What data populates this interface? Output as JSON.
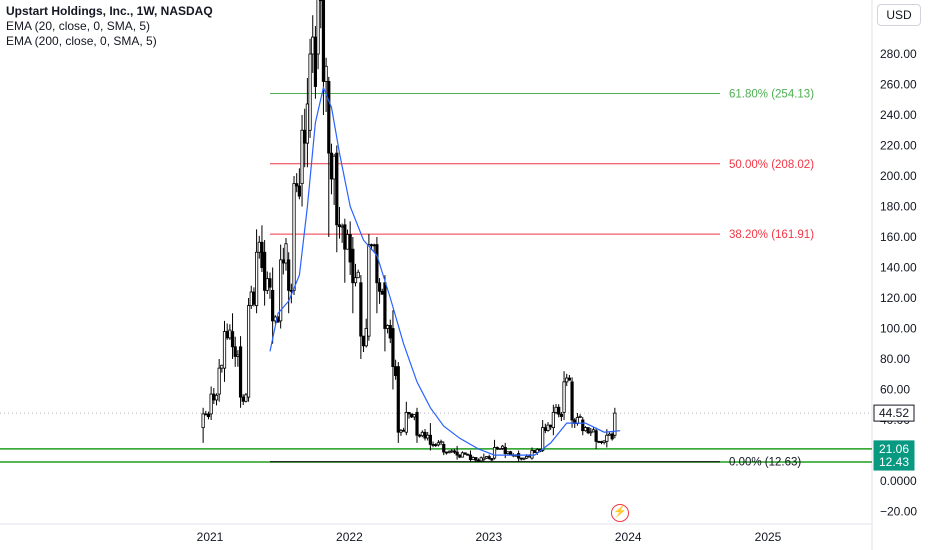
{
  "legend": {
    "title": "Upstart Holdings, Inc., 1W, NASDAQ",
    "ema20": "EMA (20, close, 0, SMA, 5)",
    "ema200": "EMA (200, close, 0, SMA, 5)"
  },
  "currency_button": "USD",
  "colors": {
    "candle": "#000000",
    "ema20": "#2962ff",
    "fib_618": "#4caf50",
    "fib_500": "#f23645",
    "fib_382": "#f23645",
    "fib_0": "#000000",
    "support_line": "#089981",
    "price_badge": "#ffffff",
    "support_badge": "#089981"
  },
  "chart_data": {
    "type": "candlestick",
    "x_tick_labels": [
      "2021",
      "2022",
      "2023",
      "2024",
      "2025"
    ],
    "y_tick_labels": [
      "280.00",
      "260.00",
      "240.00",
      "220.00",
      "200.00",
      "180.00",
      "160.00",
      "140.00",
      "120.00",
      "100.00",
      "80.00",
      "60.00",
      "40.00",
      "20.00",
      "0.0000",
      "−20.00"
    ],
    "y_ticks": [
      280,
      260,
      240,
      220,
      200,
      180,
      160,
      140,
      120,
      100,
      80,
      60,
      40,
      20,
      0,
      -20
    ],
    "ylim": [
      -25,
      300
    ],
    "date_range": [
      "2020-12-14",
      "2023-12-11"
    ],
    "ohlc": [
      [
        "2020-12-14",
        35,
        48,
        25,
        44
      ],
      [
        "2021-01-04",
        44,
        62,
        40,
        57
      ],
      [
        "2021-01-25",
        57,
        80,
        52,
        74
      ],
      [
        "2021-02-08",
        74,
        105,
        65,
        98
      ],
      [
        "2021-03-01",
        98,
        110,
        80,
        88
      ],
      [
        "2021-03-22",
        88,
        95,
        48,
        55
      ],
      [
        "2021-04-12",
        55,
        120,
        52,
        115
      ],
      [
        "2021-05-03",
        115,
        165,
        110,
        150
      ],
      [
        "2021-05-24",
        150,
        158,
        115,
        125
      ],
      [
        "2021-06-14",
        125,
        140,
        90,
        105
      ],
      [
        "2021-07-05",
        105,
        155,
        100,
        145
      ],
      [
        "2021-07-26",
        145,
        150,
        110,
        125
      ],
      [
        "2021-08-09",
        125,
        200,
        122,
        195
      ],
      [
        "2021-08-30",
        195,
        240,
        180,
        230
      ],
      [
        "2021-09-20",
        230,
        290,
        225,
        280
      ],
      [
        "2021-10-11",
        280,
        401,
        270,
        330
      ],
      [
        "2021-10-25",
        330,
        340,
        240,
        262
      ],
      [
        "2021-11-08",
        262,
        265,
        160,
        215
      ],
      [
        "2021-11-29",
        215,
        220,
        150,
        168
      ],
      [
        "2021-12-20",
        168,
        172,
        130,
        152
      ],
      [
        "2022-01-10",
        152,
        160,
        110,
        130
      ],
      [
        "2022-01-31",
        130,
        135,
        80,
        95
      ],
      [
        "2022-02-21",
        95,
        162,
        92,
        155
      ],
      [
        "2022-03-14",
        155,
        160,
        110,
        130
      ],
      [
        "2022-04-04",
        130,
        135,
        85,
        100
      ],
      [
        "2022-04-25",
        100,
        112,
        60,
        75
      ],
      [
        "2022-05-09",
        75,
        78,
        25,
        32
      ],
      [
        "2022-05-30",
        32,
        52,
        30,
        45
      ],
      [
        "2022-06-27",
        45,
        48,
        25,
        30
      ],
      [
        "2022-08-01",
        30,
        38,
        20,
        24
      ],
      [
        "2022-09-05",
        24,
        26,
        17,
        19
      ],
      [
        "2022-10-10",
        19,
        23,
        14,
        17
      ],
      [
        "2022-11-14",
        17,
        20,
        13,
        14
      ],
      [
        "2022-12-19",
        14,
        18,
        12.5,
        15
      ],
      [
        "2023-01-16",
        15,
        27,
        14,
        22
      ],
      [
        "2023-02-13",
        22,
        25,
        15,
        18
      ],
      [
        "2023-03-20",
        18,
        20,
        12.6,
        15
      ],
      [
        "2023-04-24",
        15,
        22,
        14,
        20
      ],
      [
        "2023-05-22",
        20,
        40,
        19,
        35
      ],
      [
        "2023-06-19",
        35,
        50,
        30,
        45
      ],
      [
        "2023-07-17",
        45,
        72,
        40,
        65
      ],
      [
        "2023-08-07",
        65,
        68,
        35,
        40
      ],
      [
        "2023-09-04",
        40,
        42,
        30,
        33
      ],
      [
        "2023-10-09",
        33,
        35,
        21,
        26
      ],
      [
        "2023-11-06",
        26,
        34,
        22,
        30
      ],
      [
        "2023-11-27",
        30,
        48,
        28,
        44.52
      ]
    ],
    "series": [
      {
        "name": "EMA (20, close, 0, SMA, 5)",
        "points": [
          [
            "2021-06-07",
            85
          ],
          [
            "2021-06-28",
            110
          ],
          [
            "2021-07-26",
            118
          ],
          [
            "2021-08-23",
            135
          ],
          [
            "2021-09-13",
            180
          ],
          [
            "2021-10-04",
            235
          ],
          [
            "2021-10-25",
            258
          ],
          [
            "2021-11-15",
            245
          ],
          [
            "2021-12-06",
            215
          ],
          [
            "2022-01-03",
            180
          ],
          [
            "2022-02-07",
            158
          ],
          [
            "2022-03-14",
            148
          ],
          [
            "2022-04-18",
            120
          ],
          [
            "2022-05-23",
            90
          ],
          [
            "2022-06-27",
            65
          ],
          [
            "2022-08-01",
            48
          ],
          [
            "2022-09-05",
            36
          ],
          [
            "2022-10-17",
            28
          ],
          [
            "2022-12-05",
            21
          ],
          [
            "2023-01-16",
            17
          ],
          [
            "2023-03-06",
            17
          ],
          [
            "2023-05-01",
            17
          ],
          [
            "2023-06-12",
            25
          ],
          [
            "2023-07-24",
            38
          ],
          [
            "2023-09-11",
            38
          ],
          [
            "2023-10-30",
            32
          ],
          [
            "2023-12-11",
            33
          ]
        ]
      }
    ],
    "fibonacci": [
      {
        "label": "61.80% (254.13)",
        "value": 254.13
      },
      {
        "label": "50.00% (208.02)",
        "value": 208.02
      },
      {
        "label": "38.20% (161.91)",
        "value": 161.91
      },
      {
        "label": "0.00% (12.63)",
        "value": 12.63
      }
    ],
    "support_lines": [
      21.06,
      12.43
    ],
    "price_badges": [
      {
        "label": "44.52",
        "value": 44.52
      },
      {
        "label": "21.06",
        "value": 21.06
      },
      {
        "label": "12.43",
        "value": 12.43
      }
    ]
  }
}
